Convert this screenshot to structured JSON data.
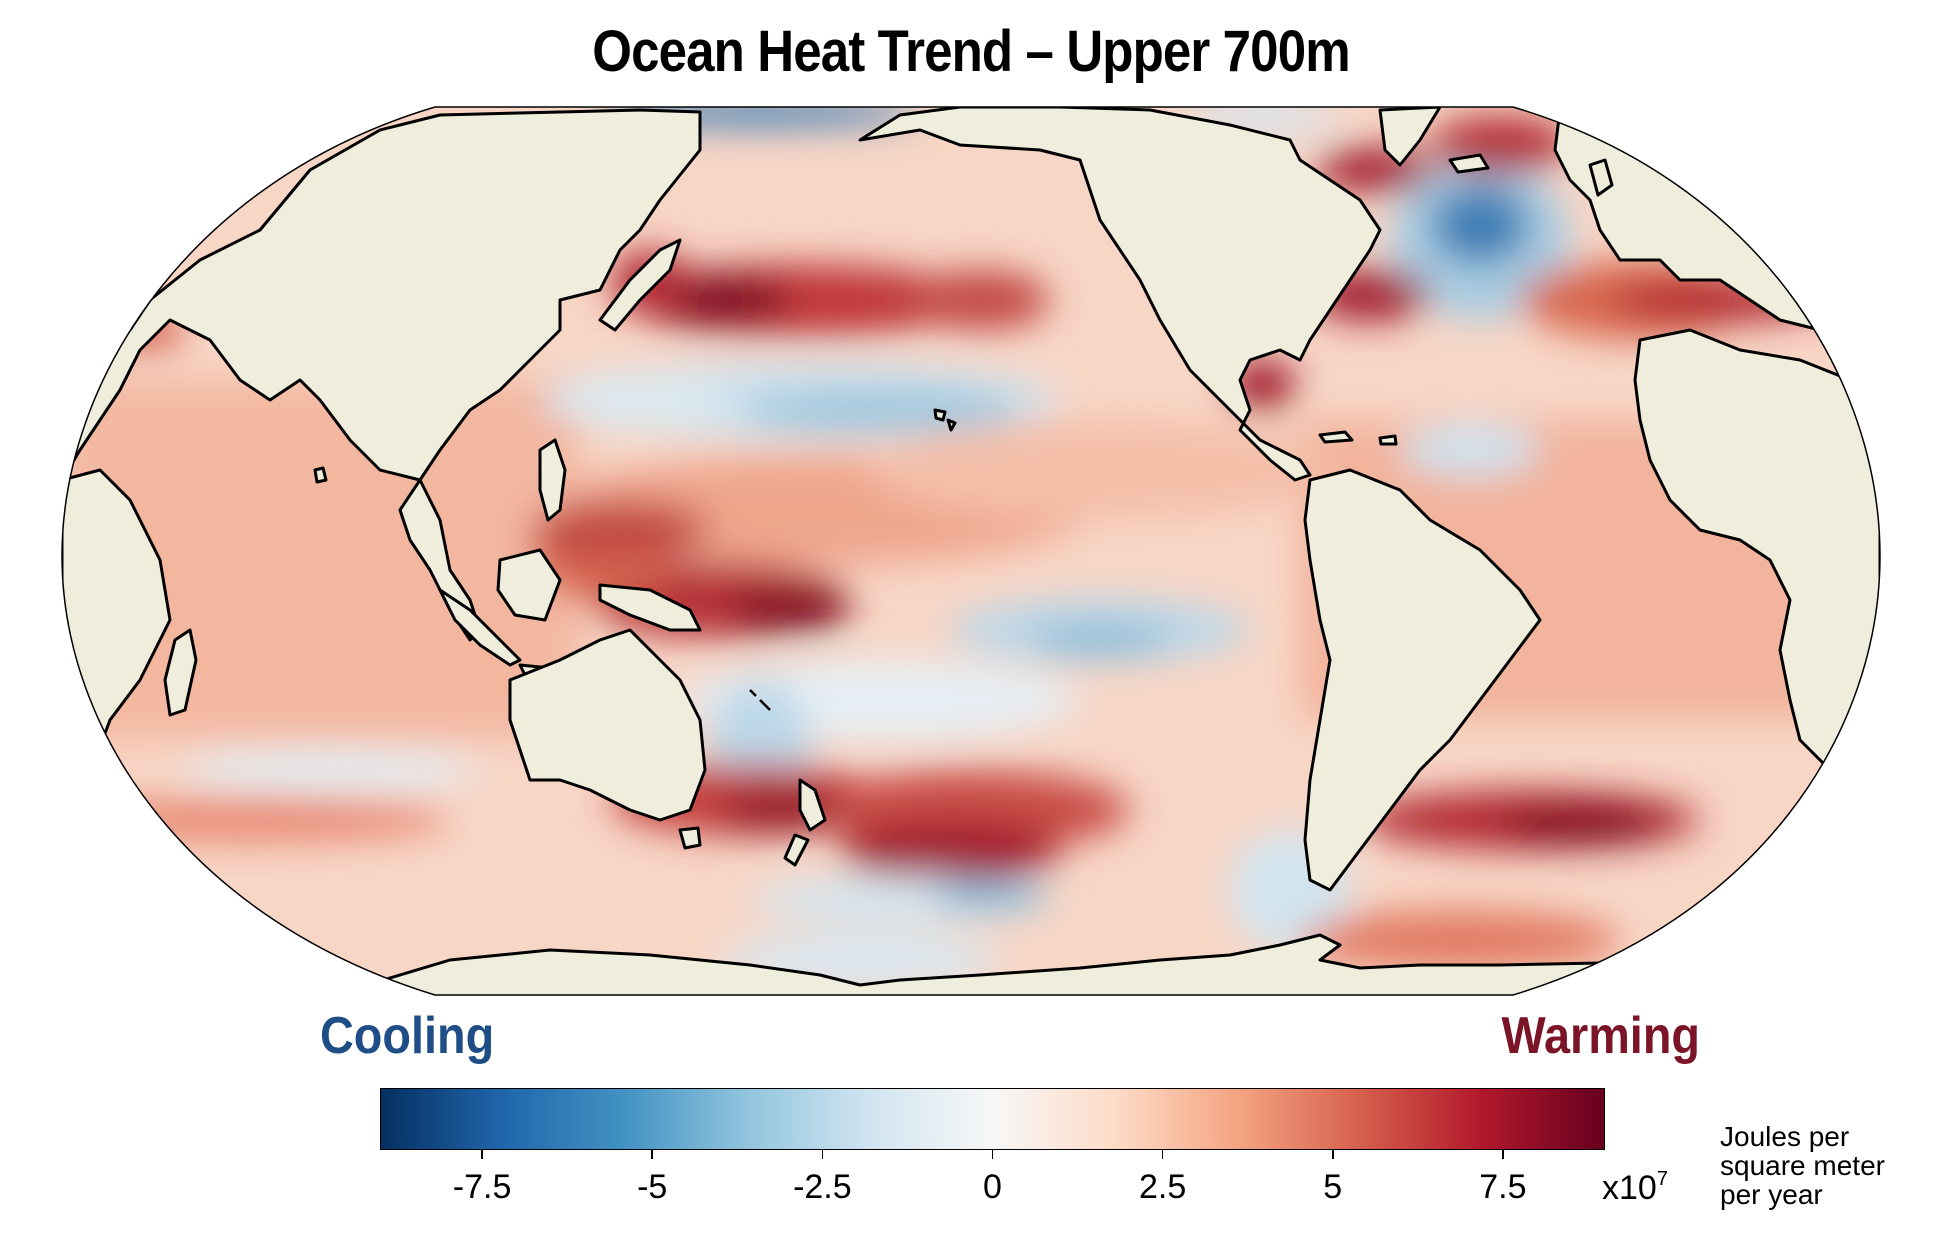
{
  "title": "Ocean Heat Trend – Upper 700m",
  "labels": {
    "cooling": "Cooling",
    "warming": "Warming"
  },
  "colorbar": {
    "ticks": [
      -7.5,
      -5,
      -2.5,
      0,
      2.5,
      5,
      7.5
    ],
    "tick_labels": [
      "-7.5",
      "-5",
      "-2.5",
      "0",
      "2.5",
      "5",
      "7.5"
    ],
    "range": [
      -9,
      9
    ],
    "multiplier_base": "x10",
    "multiplier_exp": "7",
    "units_line1": "Joules per",
    "units_line2": "square meter",
    "units_line3": "per year",
    "colors": [
      "#053061",
      "#2166ac",
      "#4393c3",
      "#92c5de",
      "#d1e5f0",
      "#f7f7f7",
      "#fddbc7",
      "#f4a582",
      "#d6604d",
      "#b2182b",
      "#67001f"
    ]
  },
  "colors": {
    "cooling": "#1f4e86",
    "warming": "#7a1426",
    "land": "#efeedd",
    "ocean_base": "#f7d8c8",
    "coast": "#000000"
  },
  "map": {
    "projection": "Robinson",
    "central_longitude": "180"
  }
}
